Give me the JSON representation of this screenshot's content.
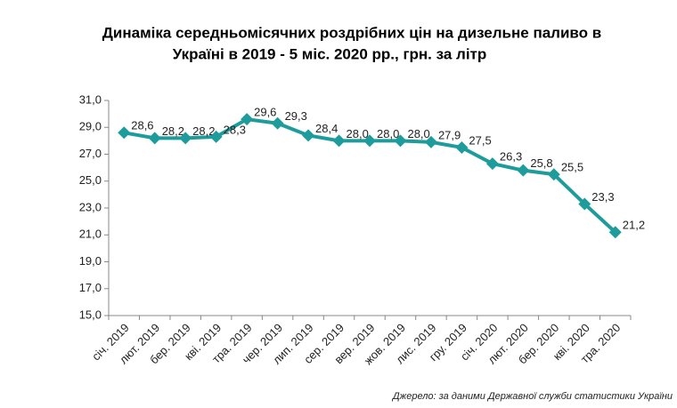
{
  "chart_data": {
    "type": "line",
    "title": [
      "Динаміка середньомісячних роздрібних цін на дизельне паливо в",
      "Україні в 2019 - 5 міс. 2020 рр., грн. за літр"
    ],
    "source": "Джерело: за даними Державної служби статистики України",
    "categories": [
      "січ. 2019",
      "лют. 2019",
      "бер. 2019",
      "кві. 2019",
      "тра. 2019",
      "чер. 2019",
      "лип. 2019",
      "сер. 2019",
      "вер. 2019",
      "жов. 2019",
      "лис. 2019",
      "гру. 2019",
      "січ. 2020",
      "лют. 2020",
      "бер. 2020",
      "кві. 2020",
      "тра. 2020"
    ],
    "series": [
      {
        "name": "Дизельне паливо",
        "color": "#1e9c9c",
        "values": [
          28.6,
          28.2,
          28.2,
          28.3,
          29.6,
          29.3,
          28.4,
          28.0,
          28.0,
          28.0,
          27.9,
          27.5,
          26.3,
          25.8,
          25.5,
          23.3,
          21.2
        ],
        "value_labels": [
          "28,6",
          "28,2",
          "28,2",
          "28,3",
          "29,6",
          "29,3",
          "28,4",
          "28,0",
          "28,0",
          "28,0",
          "27,9",
          "27,5",
          "26,3",
          "25,8",
          "25,5",
          "23,3",
          "21,2"
        ]
      }
    ],
    "ylim": [
      15,
      31
    ],
    "yticks": [
      {
        "value": 15,
        "label": "15,0"
      },
      {
        "value": 17,
        "label": "17,0"
      },
      {
        "value": 19,
        "label": "19,0"
      },
      {
        "value": 21,
        "label": "21,0"
      },
      {
        "value": 23,
        "label": "23,0"
      },
      {
        "value": 25,
        "label": "25,0"
      },
      {
        "value": 27,
        "label": "27,0"
      },
      {
        "value": 29,
        "label": "29,0"
      },
      {
        "value": 31,
        "label": "31,0"
      }
    ],
    "grid": false
  }
}
